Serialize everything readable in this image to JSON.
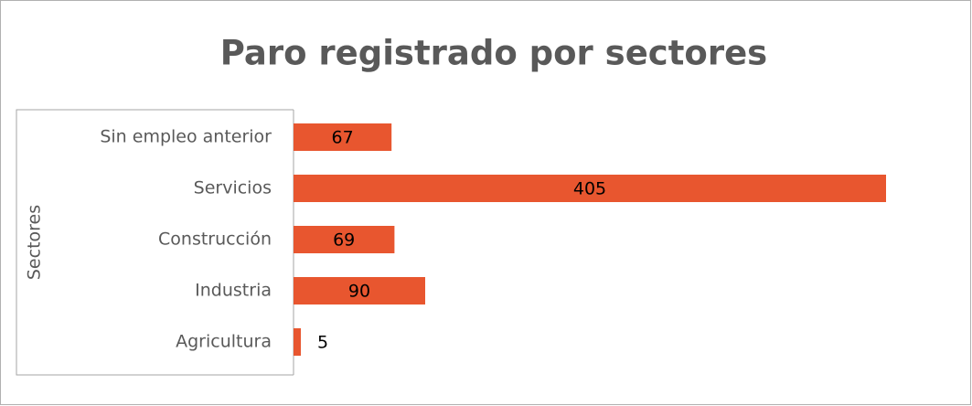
{
  "chart_data": {
    "type": "hbar",
    "title": "Paro registrado por sectores",
    "y_label": "Sectores",
    "categories": [
      "Sin empleo anterior",
      "Servicios",
      "Construcción",
      "Industria",
      "Agricultura"
    ],
    "values": [
      67,
      405,
      69,
      90,
      5
    ],
    "color": "#e8562f"
  }
}
